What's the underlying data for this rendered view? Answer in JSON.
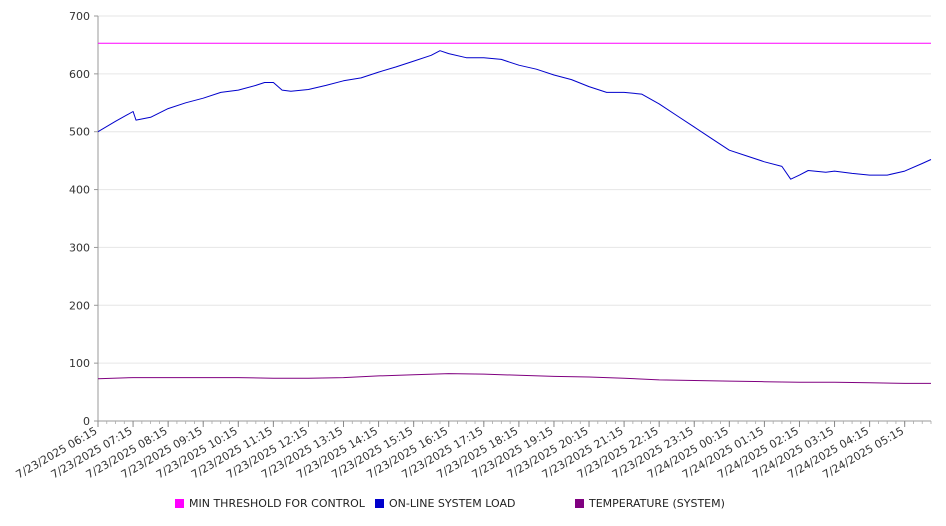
{
  "chart_data": {
    "type": "line",
    "x_ticks": [
      "7/23/2025 06:15",
      "7/23/2025 07:15",
      "7/23/2025 08:15",
      "7/23/2025 09:15",
      "7/23/2025 10:15",
      "7/23/2025 11:15",
      "7/23/2025 12:15",
      "7/23/2025 13:15",
      "7/23/2025 14:15",
      "7/23/2025 15:15",
      "7/23/2025 16:15",
      "7/23/2025 17:15",
      "7/23/2025 18:15",
      "7/23/2025 19:15",
      "7/23/2025 20:15",
      "7/23/2025 21:15",
      "7/23/2025 22:15",
      "7/23/2025 23:15",
      "7/24/2025 00:15",
      "7/24/2025 01:15",
      "7/24/2025 02:15",
      "7/24/2025 03:15",
      "7/24/2025 04:15",
      "7/24/2025 05:15"
    ],
    "y_ticks": [
      "0",
      "100",
      "200",
      "300",
      "400",
      "500",
      "600",
      "700"
    ],
    "ylim": [
      0,
      700
    ],
    "grid": true,
    "legend_position": "bottom",
    "series": [
      {
        "name": "MIN THRESHOLD FOR CONTROL",
        "color": "#ff00ff",
        "x": [
          "7/23/2025 06:15",
          "7/24/2025 06:00"
        ],
        "values": [
          653,
          653
        ]
      },
      {
        "name": "ON-LINE SYSTEM LOAD",
        "color": "#0000cc",
        "x": [
          "7/23/2025 06:15",
          "7/23/2025 06:45",
          "7/23/2025 07:15",
          "7/23/2025 07:20",
          "7/23/2025 07:45",
          "7/23/2025 08:15",
          "7/23/2025 08:45",
          "7/23/2025 09:15",
          "7/23/2025 09:45",
          "7/23/2025 10:15",
          "7/23/2025 10:45",
          "7/23/2025 11:00",
          "7/23/2025 11:15",
          "7/23/2025 11:30",
          "7/23/2025 11:45",
          "7/23/2025 12:15",
          "7/23/2025 12:45",
          "7/23/2025 13:15",
          "7/23/2025 13:45",
          "7/23/2025 14:15",
          "7/23/2025 14:45",
          "7/23/2025 15:15",
          "7/23/2025 15:45",
          "7/23/2025 16:00",
          "7/23/2025 16:15",
          "7/23/2025 16:45",
          "7/23/2025 17:15",
          "7/23/2025 17:45",
          "7/23/2025 18:15",
          "7/23/2025 18:45",
          "7/23/2025 19:15",
          "7/23/2025 19:45",
          "7/23/2025 20:15",
          "7/23/2025 20:45",
          "7/23/2025 21:15",
          "7/23/2025 21:45",
          "7/23/2025 22:15",
          "7/23/2025 22:45",
          "7/23/2025 23:15",
          "7/23/2025 23:45",
          "7/24/2025 00:15",
          "7/24/2025 00:45",
          "7/24/2025 01:15",
          "7/24/2025 01:45",
          "7/24/2025 02:00",
          "7/24/2025 02:15",
          "7/24/2025 02:30",
          "7/24/2025 03:00",
          "7/24/2025 03:15",
          "7/24/2025 03:45",
          "7/24/2025 04:15",
          "7/24/2025 04:45",
          "7/24/2025 05:15",
          "7/24/2025 05:45",
          "7/24/2025 06:00"
        ],
        "values": [
          500,
          518,
          535,
          520,
          525,
          540,
          550,
          558,
          568,
          572,
          580,
          585,
          585,
          572,
          570,
          573,
          580,
          588,
          593,
          603,
          612,
          622,
          632,
          640,
          635,
          628,
          628,
          625,
          615,
          608,
          598,
          590,
          578,
          568,
          568,
          565,
          548,
          528,
          508,
          488,
          468,
          458,
          448,
          440,
          418,
          425,
          433,
          430,
          432,
          428,
          425,
          425,
          432,
          445,
          452
        ]
      },
      {
        "name": "TEMPERATURE (SYSTEM)",
        "color": "#800080",
        "x": [
          "7/23/2025 06:15",
          "7/23/2025 07:15",
          "7/23/2025 08:15",
          "7/23/2025 09:15",
          "7/23/2025 10:15",
          "7/23/2025 11:15",
          "7/23/2025 12:15",
          "7/23/2025 13:15",
          "7/23/2025 14:15",
          "7/23/2025 15:15",
          "7/23/2025 16:15",
          "7/23/2025 17:15",
          "7/23/2025 18:15",
          "7/23/2025 19:15",
          "7/23/2025 20:15",
          "7/23/2025 21:15",
          "7/23/2025 22:15",
          "7/23/2025 23:15",
          "7/24/2025 00:15",
          "7/24/2025 01:15",
          "7/24/2025 02:15",
          "7/24/2025 03:15",
          "7/24/2025 04:15",
          "7/24/2025 05:15",
          "7/24/2025 06:00"
        ],
        "values": [
          73,
          75,
          75,
          75,
          75,
          74,
          74,
          75,
          78,
          80,
          82,
          81,
          79,
          77,
          76,
          74,
          71,
          70,
          69,
          68,
          67,
          67,
          66,
          65,
          65
        ]
      }
    ]
  }
}
